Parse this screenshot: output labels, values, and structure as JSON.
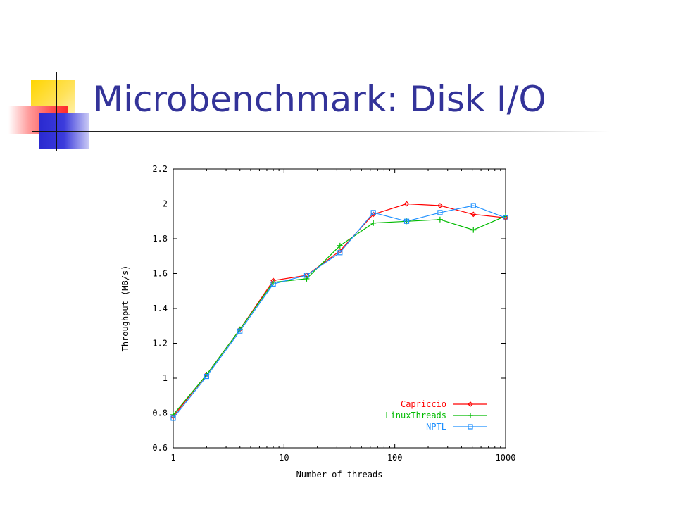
{
  "slide": {
    "title": "Microbenchmark: Disk I/O"
  },
  "chart_data": {
    "type": "line",
    "xscale": "log",
    "xlabel": "Number of threads",
    "ylabel": "Throughput (MB/s)",
    "xlim": [
      1,
      1000
    ],
    "ylim": [
      0.6,
      2.2
    ],
    "xticks": [
      1,
      10,
      100,
      1000
    ],
    "yticks": [
      0.6,
      0.8,
      1,
      1.2,
      1.4,
      1.6,
      1.8,
      2,
      2.2
    ],
    "grid": false,
    "legend_position": "bottom-right",
    "series": [
      {
        "name": "Capriccio",
        "color": "#ff0000",
        "marker": "diamond",
        "points": [
          [
            1,
            0.78
          ],
          [
            2,
            1.02
          ],
          [
            4,
            1.28
          ],
          [
            8,
            1.56
          ],
          [
            16,
            1.59
          ],
          [
            32,
            1.73
          ],
          [
            64,
            1.94
          ],
          [
            128,
            2.0
          ],
          [
            256,
            1.99
          ],
          [
            512,
            1.94
          ],
          [
            1000,
            1.92
          ]
        ]
      },
      {
        "name": "LinuxThreads",
        "color": "#00bb00",
        "marker": "plus",
        "points": [
          [
            1,
            0.79
          ],
          [
            2,
            1.02
          ],
          [
            4,
            1.28
          ],
          [
            8,
            1.55
          ],
          [
            16,
            1.57
          ],
          [
            32,
            1.76
          ],
          [
            64,
            1.89
          ],
          [
            128,
            1.9
          ],
          [
            256,
            1.91
          ],
          [
            512,
            1.85
          ],
          [
            1000,
            1.93
          ]
        ]
      },
      {
        "name": "NPTL",
        "color": "#1e90ff",
        "marker": "square",
        "points": [
          [
            1,
            0.77
          ],
          [
            2,
            1.01
          ],
          [
            4,
            1.27
          ],
          [
            8,
            1.54
          ],
          [
            16,
            1.59
          ],
          [
            32,
            1.72
          ],
          [
            64,
            1.95
          ],
          [
            128,
            1.9
          ],
          [
            256,
            1.95
          ],
          [
            512,
            1.99
          ],
          [
            1000,
            1.92
          ]
        ]
      }
    ]
  }
}
